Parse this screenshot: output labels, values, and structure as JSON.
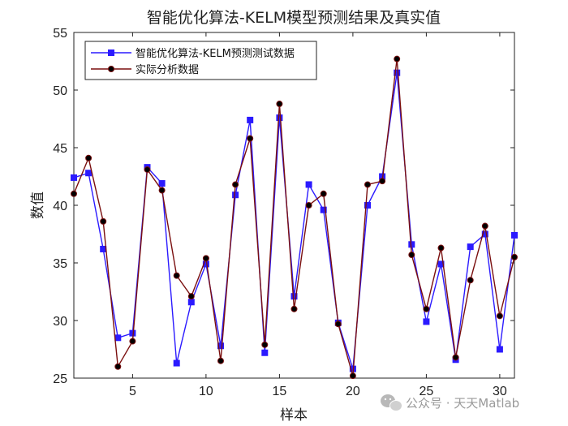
{
  "chart_data": {
    "type": "line",
    "title": "智能优化算法-KELM模型预测结果及真实值",
    "xlabel": "样本",
    "ylabel": "数值",
    "xlim": [
      1,
      31
    ],
    "ylim": [
      25,
      55
    ],
    "xticks": [
      5,
      10,
      15,
      20,
      25,
      30
    ],
    "yticks": [
      25,
      30,
      35,
      40,
      45,
      50,
      55
    ],
    "grid": false,
    "legend_position": "top-left",
    "x": [
      1,
      2,
      3,
      4,
      5,
      6,
      7,
      8,
      9,
      10,
      11,
      12,
      13,
      14,
      15,
      16,
      17,
      18,
      19,
      20,
      21,
      22,
      23,
      24,
      25,
      26,
      27,
      28,
      29,
      30,
      31
    ],
    "series": [
      {
        "name": "智能优化算法-KELM预测测试数据",
        "color": "#2b1aff",
        "marker": "square",
        "values": [
          42.4,
          42.8,
          36.2,
          28.5,
          28.9,
          43.3,
          41.9,
          26.3,
          31.6,
          34.9,
          27.8,
          40.9,
          47.4,
          27.2,
          47.6,
          32.1,
          41.8,
          39.6,
          29.8,
          25.8,
          40.0,
          42.5,
          51.5,
          36.6,
          29.9,
          34.9,
          26.6,
          36.4,
          37.5,
          27.5,
          37.4
        ]
      },
      {
        "name": "实际分析数据",
        "color": "#7a0f0f",
        "marker": "circle",
        "values": [
          41.0,
          44.1,
          38.6,
          26.0,
          28.2,
          43.1,
          41.3,
          33.9,
          32.1,
          35.4,
          26.5,
          41.8,
          45.8,
          27.9,
          48.8,
          31.0,
          40.0,
          41.0,
          29.7,
          25.2,
          41.8,
          42.1,
          52.7,
          35.7,
          31.0,
          36.3,
          26.8,
          33.5,
          38.2,
          30.4,
          35.5
        ]
      }
    ]
  },
  "watermark": {
    "text": "公众号 · 天天Matlab",
    "icon": "wechat-icon"
  }
}
